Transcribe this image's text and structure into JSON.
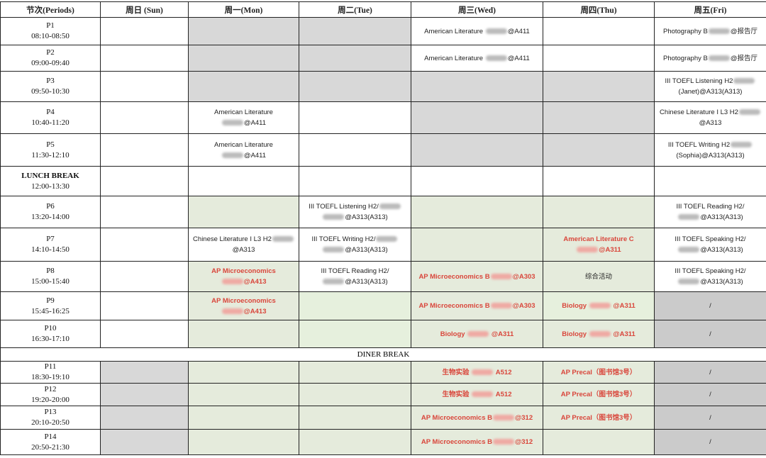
{
  "colors": {
    "red_text": "#d9463b",
    "gray": "#d8d8d8",
    "dark_gray": "#cbcbcb",
    "green": "#e5ebdc",
    "light_green": "#e6f0dd"
  },
  "headers": [
    "节次(Periods)",
    "周日 (Sun)",
    "周一(Mon)",
    "周二(Tue)",
    "周三(Wed)",
    "周四(Thu)",
    "周五(Fri)"
  ],
  "rows": [
    {
      "period": "P1",
      "time": "08:10-08:50",
      "cells": [
        {
          "bg": "white"
        },
        {
          "bg": "gray"
        },
        {
          "bg": "gray"
        },
        {
          "bg": "white",
          "lines": [
            [
              "American Literature ",
              {
                "blur": true
              },
              "@A411"
            ]
          ]
        },
        {
          "bg": "white"
        },
        {
          "bg": "white",
          "lines": [
            [
              "Photography B",
              {
                "blur": true
              },
              "@报告厅"
            ]
          ]
        }
      ]
    },
    {
      "period": "P2",
      "time": "09:00-09:40",
      "cells": [
        {
          "bg": "white"
        },
        {
          "bg": "gray"
        },
        {
          "bg": "gray"
        },
        {
          "bg": "white",
          "lines": [
            [
              "American Literature ",
              {
                "blur": true
              },
              "@A411"
            ]
          ]
        },
        {
          "bg": "white"
        },
        {
          "bg": "white",
          "lines": [
            [
              "Photography B",
              {
                "blur": true
              },
              "@报告厅"
            ]
          ]
        }
      ]
    },
    {
      "period": "P3",
      "time": "09:50-10:30",
      "cells": [
        {
          "bg": "white"
        },
        {
          "bg": "gray"
        },
        {
          "bg": "gray"
        },
        {
          "bg": "gray"
        },
        {
          "bg": "gray"
        },
        {
          "bg": "white",
          "lines": [
            [
              "III TOEFL Listening H2",
              {
                "blur": true
              }
            ],
            [
              "(Janet)@A313(A313)"
            ]
          ]
        }
      ]
    },
    {
      "period": "P4",
      "time": "10:40-11:20",
      "cells": [
        {
          "bg": "white"
        },
        {
          "bg": "white",
          "lines": [
            [
              "American Literature"
            ],
            [
              {
                "blur": true
              },
              "@A411"
            ]
          ]
        },
        {
          "bg": "white"
        },
        {
          "bg": "gray"
        },
        {
          "bg": "gray"
        },
        {
          "bg": "white",
          "lines": [
            [
              "Chinese Literature I L3 H2",
              {
                "blur": true
              }
            ],
            [
              "@A313"
            ]
          ]
        }
      ]
    },
    {
      "period": "P5",
      "time": "11:30-12:10",
      "cells": [
        {
          "bg": "white"
        },
        {
          "bg": "white",
          "lines": [
            [
              "American Literature"
            ],
            [
              {
                "blur": true
              },
              "@A411"
            ]
          ]
        },
        {
          "bg": "white"
        },
        {
          "bg": "gray"
        },
        {
          "bg": "gray"
        },
        {
          "bg": "white",
          "lines": [
            [
              "III TOEFL Writing H2",
              {
                "blur": true
              }
            ],
            [
              "(Sophia)@A313(A313)"
            ]
          ]
        }
      ]
    },
    {
      "period": "LUNCH BREAK",
      "time": "12:00-13:30",
      "bold": true,
      "cells": [
        {
          "bg": "white"
        },
        {
          "bg": "white"
        },
        {
          "bg": "white"
        },
        {
          "bg": "white"
        },
        {
          "bg": "white"
        },
        {
          "bg": "white"
        }
      ]
    },
    {
      "period": "P6",
      "time": "13:20-14:00",
      "cells": [
        {
          "bg": "white"
        },
        {
          "bg": "green"
        },
        {
          "bg": "white",
          "lines": [
            [
              "III TOEFL Listening H2/",
              {
                "blur": true
              }
            ],
            [
              {
                "blur": true
              },
              "@A313(A313)"
            ]
          ]
        },
        {
          "bg": "green"
        },
        {
          "bg": "green"
        },
        {
          "bg": "white",
          "lines": [
            [
              "III TOEFL Reading H2/"
            ],
            [
              {
                "blur": true
              },
              "@A313(A313)"
            ]
          ]
        }
      ]
    },
    {
      "period": "P7",
      "time": "14:10-14:50",
      "cells": [
        {
          "bg": "white"
        },
        {
          "bg": "white",
          "lines": [
            [
              "Chinese Literature I L3 H2",
              {
                "blur": true
              }
            ],
            [
              "@A313"
            ]
          ]
        },
        {
          "bg": "white",
          "lines": [
            [
              "III TOEFL Writing H2/",
              {
                "blur": true
              }
            ],
            [
              {
                "blur": true
              },
              "@A313(A313)"
            ]
          ]
        },
        {
          "bg": "green"
        },
        {
          "bg": "green",
          "red": true,
          "lines": [
            [
              "American Literature C"
            ],
            [
              {
                "blur": true
              },
              "@A311"
            ]
          ]
        },
        {
          "bg": "white",
          "lines": [
            [
              "III TOEFL Speaking H2/"
            ],
            [
              {
                "blur": true
              },
              "@A313(A313)"
            ]
          ]
        }
      ]
    },
    {
      "period": "P8",
      "time": "15:00-15:40",
      "cells": [
        {
          "bg": "white"
        },
        {
          "bg": "green",
          "red": true,
          "lines": [
            [
              "AP Microeconomics"
            ],
            [
              {
                "blur": true
              },
              "@A413"
            ]
          ]
        },
        {
          "bg": "white",
          "lines": [
            [
              "III TOEFL Reading H2/"
            ],
            [
              {
                "blur": true
              },
              "@A313(A313)"
            ]
          ]
        },
        {
          "bg": "green",
          "red": true,
          "lines": [
            [
              "AP Microeconomics B",
              {
                "blur": true
              },
              "@A303"
            ]
          ]
        },
        {
          "bg": "green",
          "lines": [
            [
              "综合活动"
            ]
          ]
        },
        {
          "bg": "white",
          "lines": [
            [
              "III TOEFL Speaking H2/"
            ],
            [
              {
                "blur": true
              },
              "@A313(A313)"
            ]
          ]
        }
      ]
    },
    {
      "period": "P9",
      "time": "15:45-16:25",
      "cells": [
        {
          "bg": "white"
        },
        {
          "bg": "green",
          "red": true,
          "lines": [
            [
              "AP Microeconomics"
            ],
            [
              {
                "blur": true
              },
              "@A413"
            ]
          ]
        },
        {
          "bg": "lightgreen"
        },
        {
          "bg": "green",
          "red": true,
          "lines": [
            [
              "AP Microeconomics B",
              {
                "blur": true
              },
              "@A303"
            ]
          ]
        },
        {
          "bg": "lightgreen",
          "red": true,
          "lines": [
            [
              "Biology ",
              {
                "blur": true
              },
              " @A311"
            ]
          ]
        },
        {
          "bg": "darkgray",
          "lines": [
            [
              "/"
            ]
          ]
        }
      ]
    },
    {
      "period": "P10",
      "time": "16:30-17:10",
      "cells": [
        {
          "bg": "white"
        },
        {
          "bg": "green"
        },
        {
          "bg": "lightgreen"
        },
        {
          "bg": "green",
          "red": true,
          "lines": [
            [
              "Biology ",
              {
                "blur": true
              },
              " @A311"
            ]
          ]
        },
        {
          "bg": "green",
          "red": true,
          "lines": [
            [
              "Biology ",
              {
                "blur": true
              },
              " @A311"
            ]
          ]
        },
        {
          "bg": "darkgray",
          "lines": [
            [
              "/"
            ]
          ]
        }
      ]
    },
    {
      "break": "DINER BREAK"
    },
    {
      "period": "P11",
      "time": "18:30-19:10",
      "cells": [
        {
          "bg": "gray"
        },
        {
          "bg": "green"
        },
        {
          "bg": "green"
        },
        {
          "bg": "green",
          "red": true,
          "lines": [
            [
              "生物实验 ",
              {
                "blur": true
              },
              " A512"
            ]
          ]
        },
        {
          "bg": "green",
          "red": true,
          "lines": [
            [
              "AP Precal（图书馆3号）"
            ]
          ]
        },
        {
          "bg": "darkgray",
          "lines": [
            [
              "/"
            ]
          ]
        }
      ]
    },
    {
      "period": "P12",
      "time": "19:20-20:00",
      "cells": [
        {
          "bg": "gray"
        },
        {
          "bg": "green"
        },
        {
          "bg": "green"
        },
        {
          "bg": "green",
          "red": true,
          "lines": [
            [
              "生物实验 ",
              {
                "blur": true
              },
              " A512"
            ]
          ]
        },
        {
          "bg": "green",
          "red": true,
          "lines": [
            [
              "AP Precal（图书馆3号）"
            ]
          ]
        },
        {
          "bg": "darkgray",
          "lines": [
            [
              "/"
            ]
          ]
        }
      ]
    },
    {
      "period": "P13",
      "time": "20:10-20:50",
      "cells": [
        {
          "bg": "gray"
        },
        {
          "bg": "green"
        },
        {
          "bg": "green"
        },
        {
          "bg": "green",
          "red": true,
          "lines": [
            [
              "AP Microeconomics B",
              {
                "blur": true
              },
              "@312"
            ]
          ]
        },
        {
          "bg": "green",
          "red": true,
          "lines": [
            [
              "AP Precal（图书馆3号）"
            ]
          ]
        },
        {
          "bg": "darkgray",
          "lines": [
            [
              "/"
            ]
          ]
        }
      ]
    },
    {
      "period": "P14",
      "time": "20:50-21:30",
      "cells": [
        {
          "bg": "gray"
        },
        {
          "bg": "green"
        },
        {
          "bg": "green"
        },
        {
          "bg": "green",
          "red": true,
          "lines": [
            [
              "AP Microeconomics B",
              {
                "blur": true
              },
              "@312"
            ]
          ]
        },
        {
          "bg": "green"
        },
        {
          "bg": "darkgray",
          "lines": [
            [
              "/"
            ]
          ]
        }
      ]
    }
  ]
}
